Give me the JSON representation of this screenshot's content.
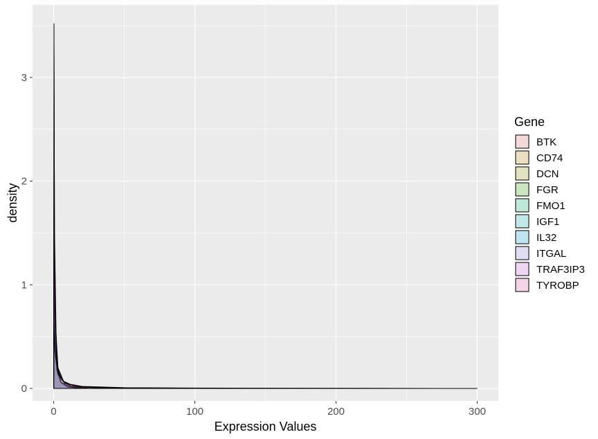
{
  "chart_data": {
    "type": "area",
    "subtype": "density",
    "title": "",
    "xlabel": "Expression Values",
    "ylabel": "density",
    "xlim": [
      -15,
      315
    ],
    "ylim": [
      -0.12,
      3.7
    ],
    "x_ticks": [
      0,
      100,
      200,
      300
    ],
    "x_tick_labels": [
      "0",
      "100",
      "200",
      "300"
    ],
    "y_ticks": [
      0,
      1,
      2,
      3
    ],
    "y_tick_labels": [
      "0",
      "1",
      "2",
      "3"
    ],
    "grid": true,
    "background": "#ebebeb",
    "legend": {
      "title": "Gene",
      "position": "right",
      "entries": [
        {
          "label": "BTK",
          "color": "#F8766D"
        },
        {
          "label": "CD74",
          "color": "#D89000"
        },
        {
          "label": "DCN",
          "color": "#A3A500"
        },
        {
          "label": "FGR",
          "color": "#39B600"
        },
        {
          "label": "FMO1",
          "color": "#00BF7D"
        },
        {
          "label": "IGF1",
          "color": "#00BFC4"
        },
        {
          "label": "IL32",
          "color": "#00B0F6"
        },
        {
          "label": "ITGAL",
          "color": "#9590FF"
        },
        {
          "label": "TRAF3IP3",
          "color": "#E76BF3"
        },
        {
          "label": "TYROBP",
          "color": "#FF62BC"
        }
      ]
    },
    "series": [
      {
        "name": "BTK",
        "x": [
          0,
          0.3,
          0.8,
          2,
          4,
          8,
          15,
          30,
          60
        ],
        "y": [
          0,
          0.62,
          0.55,
          0.28,
          0.12,
          0.05,
          0.018,
          0.006,
          0
        ]
      },
      {
        "name": "CD74",
        "x": [
          0,
          0.3,
          1,
          3,
          8,
          20,
          50,
          100,
          150,
          200,
          283
        ],
        "y": [
          0,
          0.45,
          0.3,
          0.12,
          0.05,
          0.02,
          0.008,
          0.004,
          0.003,
          0.002,
          0
        ]
      },
      {
        "name": "DCN",
        "x": [
          0,
          0.3,
          1,
          3,
          7,
          15,
          30,
          50
        ],
        "y": [
          0,
          1.35,
          0.7,
          0.2,
          0.07,
          0.02,
          0.006,
          0
        ]
      },
      {
        "name": "FGR",
        "x": [
          0,
          0.2,
          0.6,
          2,
          5,
          12,
          25
        ],
        "y": [
          0,
          3.52,
          1.25,
          0.22,
          0.06,
          0.015,
          0
        ]
      },
      {
        "name": "FMO1",
        "x": [
          0,
          0.2,
          0.7,
          2,
          5,
          12,
          25
        ],
        "y": [
          0,
          2.05,
          0.85,
          0.2,
          0.06,
          0.015,
          0
        ]
      },
      {
        "name": "IGF1",
        "x": [
          0,
          0.2,
          0.7,
          2,
          5,
          12,
          25
        ],
        "y": [
          0,
          0.68,
          0.5,
          0.18,
          0.06,
          0.015,
          0
        ]
      },
      {
        "name": "IL32",
        "x": [
          0,
          0.3,
          1,
          3,
          8,
          20,
          45
        ],
        "y": [
          0,
          0.95,
          0.55,
          0.16,
          0.05,
          0.012,
          0
        ]
      },
      {
        "name": "ITGAL",
        "x": [
          0,
          0.3,
          1,
          3,
          6,
          12,
          25
        ],
        "y": [
          0,
          1.05,
          0.6,
          0.2,
          0.08,
          0.02,
          0
        ]
      },
      {
        "name": "TRAF3IP3",
        "x": [
          0,
          0.2,
          0.6,
          2,
          5,
          10,
          20
        ],
        "y": [
          0,
          3.3,
          1.5,
          0.25,
          0.06,
          0.015,
          0
        ]
      },
      {
        "name": "TYROBP",
        "x": [
          0,
          0.3,
          1,
          3,
          8,
          20,
          50,
          140,
          300
        ],
        "y": [
          0,
          0.55,
          0.35,
          0.14,
          0.05,
          0.015,
          0.005,
          0.002,
          0
        ]
      }
    ]
  }
}
